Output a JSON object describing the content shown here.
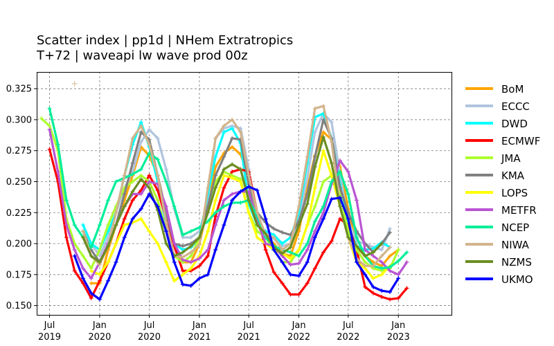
{
  "chart_data": {
    "type": "line",
    "title": [
      "Scatter index  |  pp1d | NHem Extratropics",
      "T+72  |  waveapi lw wave prod 00z"
    ],
    "xlabel": "",
    "ylabel": "",
    "xlim": [
      "2019-05-15",
      "2023-07-15"
    ],
    "ylim": [
      0.1425,
      0.3385
    ],
    "grid": true,
    "legend_position": "right",
    "x_ticks": [
      {
        "date": "2019-07-01",
        "label": "Jul\n2019"
      },
      {
        "date": "2020-01-01",
        "label": "Jan\n2020"
      },
      {
        "date": "2020-07-01",
        "label": "Jul\n2020"
      },
      {
        "date": "2021-01-01",
        "label": "Jan\n2021"
      },
      {
        "date": "2021-07-01",
        "label": "Jul\n2021"
      },
      {
        "date": "2022-01-01",
        "label": "Jan\n2022"
      },
      {
        "date": "2022-07-01",
        "label": "Jul\n2022"
      },
      {
        "date": "2023-01-01",
        "label": "Jan\n2023"
      }
    ],
    "y_ticks": [
      0.15,
      0.175,
      0.2,
      0.225,
      0.25,
      0.275,
      0.3,
      0.325
    ],
    "y_tick_labels": [
      "0.150",
      "0.175",
      "0.200",
      "0.225",
      "0.250",
      "0.275",
      "0.300",
      "0.325"
    ],
    "series": [
      {
        "name": "BoM",
        "color": "#FFA500",
        "start": "2019-12-01",
        "values": [
          0.168,
          0.168,
          0.195,
          0.215,
          0.235,
          0.255,
          0.278,
          0.271,
          0.255,
          0.225,
          0.2,
          0.185,
          0.185,
          0.2,
          0.23,
          0.262,
          0.273,
          0.278,
          0.272,
          0.255,
          0.225,
          0.205,
          0.2,
          0.192,
          0.19,
          0.21,
          0.245,
          0.271,
          0.29,
          0.284,
          0.262,
          0.228,
          0.197,
          0.19,
          0.185,
          0.182,
          0.19,
          0.195
        ]
      },
      {
        "name": "ECCC",
        "color": "#B0C4DE",
        "start": "2019-11-01",
        "values": [
          0.215,
          0.2,
          0.19,
          0.205,
          0.225,
          0.245,
          0.258,
          0.282,
          0.292,
          0.285,
          0.26,
          0.228,
          0.205,
          0.205,
          0.21,
          0.235,
          0.285,
          0.293,
          0.295,
          0.293,
          0.26,
          0.222,
          0.207,
          0.204,
          0.198,
          0.2,
          0.22,
          0.253,
          0.29,
          0.305,
          0.298,
          0.256,
          0.218,
          0.202,
          0.2,
          0.197,
          0.195,
          0.212
        ]
      },
      {
        "name": "DWD",
        "color": "#00FFFF",
        "start": "2019-11-01",
        "values": [
          0.215,
          0.2,
          0.195,
          0.21,
          0.225,
          0.255,
          0.28,
          0.298,
          0.278,
          0.25,
          0.215,
          0.2,
          0.195,
          0.197,
          0.205,
          0.24,
          0.27,
          0.29,
          0.293,
          0.281,
          0.232,
          0.215,
          0.21,
          0.207,
          0.2,
          0.205,
          0.225,
          0.265,
          0.302,
          0.305,
          0.285,
          0.248,
          0.213,
          0.198,
          0.195,
          0.196,
          0.201,
          0.197
        ]
      },
      {
        "name": "ECMWF",
        "color": "#FF0000",
        "start": "2019-07-01",
        "values": [
          0.276,
          0.25,
          0.205,
          0.178,
          0.168,
          0.156,
          0.17,
          0.185,
          0.2,
          0.22,
          0.235,
          0.243,
          0.255,
          0.243,
          0.22,
          0.198,
          0.178,
          0.178,
          0.182,
          0.19,
          0.222,
          0.245,
          0.258,
          0.26,
          0.258,
          0.225,
          0.195,
          0.177,
          0.168,
          0.159,
          0.159,
          0.168,
          0.18,
          0.193,
          0.202,
          0.22,
          0.215,
          0.195,
          0.165,
          0.16,
          0.157,
          0.155,
          0.156,
          0.164
        ]
      },
      {
        "name": "JMA",
        "color": "#ADFF2F",
        "start": "2019-06-01",
        "values": [
          0.301,
          0.295,
          0.275,
          0.22,
          0.2,
          0.19,
          0.18,
          0.195,
          0.215,
          0.23,
          0.245,
          0.25,
          0.255,
          0.25,
          0.235,
          0.21,
          0.19,
          0.185,
          0.19,
          0.205,
          0.23,
          0.25,
          0.258,
          0.255,
          0.252,
          0.225,
          0.21,
          0.205,
          0.195,
          0.185,
          0.185,
          0.195,
          0.215,
          0.23,
          0.25,
          0.255,
          0.24,
          0.21,
          0.195,
          0.185,
          0.18,
          0.178,
          0.18,
          0.195
        ]
      },
      {
        "name": "KMA",
        "color": "#808080",
        "start": "2019-11-01",
        "values": [
          0.21,
          0.195,
          0.185,
          0.2,
          0.215,
          0.24,
          0.265,
          0.29,
          0.284,
          0.255,
          0.225,
          0.2,
          0.198,
          0.2,
          0.205,
          0.23,
          0.255,
          0.27,
          0.285,
          0.284,
          0.248,
          0.225,
          0.217,
          0.212,
          0.209,
          0.207,
          0.218,
          0.24,
          0.27,
          0.3,
          0.285,
          0.245,
          0.225,
          0.21,
          0.2,
          0.193,
          0.2,
          0.209
        ]
      },
      {
        "name": "LOPS",
        "color": "#FFFF00",
        "start": "2019-12-01",
        "values": [
          0.178,
          0.175,
          0.185,
          0.2,
          0.215,
          0.217,
          0.22,
          0.21,
          0.2,
          0.185,
          0.17,
          0.175,
          0.18,
          0.19,
          0.21,
          0.235,
          0.255,
          0.253,
          0.25,
          0.225,
          0.205,
          0.2,
          0.195,
          0.192,
          0.188,
          0.195,
          0.215,
          0.245,
          0.275,
          0.255,
          0.23,
          0.205,
          0.185,
          0.18,
          0.172,
          0.175,
          0.182
        ]
      },
      {
        "name": "METFR",
        "color": "#BA55D3",
        "start": "2019-07-01",
        "values": [
          0.292,
          0.258,
          0.215,
          0.195,
          0.18,
          0.172,
          0.185,
          0.2,
          0.215,
          0.23,
          0.24,
          0.24,
          0.25,
          0.248,
          0.23,
          0.2,
          0.187,
          0.185,
          0.188,
          0.195,
          0.215,
          0.235,
          0.24,
          0.242,
          0.242,
          0.218,
          0.2,
          0.198,
          0.19,
          0.183,
          0.184,
          0.195,
          0.21,
          0.225,
          0.248,
          0.267,
          0.258,
          0.235,
          0.195,
          0.19,
          0.185,
          0.178,
          0.175,
          0.185
        ]
      },
      {
        "name": "NCEP",
        "color": "#00EE99",
        "start": "2019-07-01",
        "values": [
          0.309,
          0.28,
          0.235,
          0.215,
          0.205,
          0.197,
          0.215,
          0.235,
          0.25,
          0.253,
          0.256,
          0.26,
          0.273,
          0.268,
          0.25,
          0.23,
          0.207,
          0.21,
          0.213,
          0.218,
          0.225,
          0.23,
          0.233,
          0.233,
          0.235,
          0.222,
          0.205,
          0.198,
          0.195,
          0.193,
          0.19,
          0.2,
          0.218,
          0.23,
          0.25,
          0.258,
          0.24,
          0.205,
          0.19,
          0.182,
          0.18,
          0.181,
          0.186,
          0.193
        ]
      },
      {
        "name": "NIWA",
        "color": "#D2B48C",
        "start": "2019-11-01",
        "values": [
          0.21,
          0.19,
          0.183,
          0.198,
          0.225,
          0.255,
          0.285,
          0.295,
          0.28,
          0.255,
          0.217,
          0.19,
          0.189,
          0.193,
          0.199,
          0.245,
          0.285,
          0.295,
          0.3,
          0.29,
          0.255,
          0.225,
          0.207,
          0.205,
          0.195,
          0.2,
          0.23,
          0.27,
          0.309,
          0.311,
          0.282,
          0.23,
          0.205,
          0.188,
          0.182,
          0.182,
          0.19,
          0.197
        ]
      },
      {
        "name": "NZMS",
        "color": "#6B8E23",
        "start": "2019-11-01",
        "values": [
          0.205,
          0.19,
          0.185,
          0.198,
          0.215,
          0.23,
          0.242,
          0.252,
          0.245,
          0.227,
          0.2,
          0.19,
          0.193,
          0.198,
          0.205,
          0.225,
          0.245,
          0.26,
          0.264,
          0.26,
          0.235,
          0.215,
          0.208,
          0.197,
          0.192,
          0.197,
          0.215,
          0.232,
          0.262,
          0.286,
          0.265,
          0.23,
          0.205,
          0.198,
          0.19,
          0.193,
          0.2
        ]
      },
      {
        "name": "UKMO",
        "color": "#0000FF",
        "start": "2019-10-01",
        "values": [
          0.19,
          0.172,
          0.16,
          0.155,
          0.17,
          0.185,
          0.205,
          0.22,
          0.228,
          0.24,
          0.23,
          0.21,
          0.185,
          0.167,
          0.166,
          0.172,
          0.175,
          0.195,
          0.215,
          0.235,
          0.242,
          0.246,
          0.243,
          0.22,
          0.195,
          0.185,
          0.175,
          0.174,
          0.185,
          0.205,
          0.22,
          0.236,
          0.237,
          0.22,
          0.185,
          0.175,
          0.165,
          0.162,
          0.161,
          0.172
        ]
      }
    ],
    "outliers": [
      {
        "series": "NIWA",
        "date": "2019-10-01",
        "value": 0.329
      }
    ]
  }
}
